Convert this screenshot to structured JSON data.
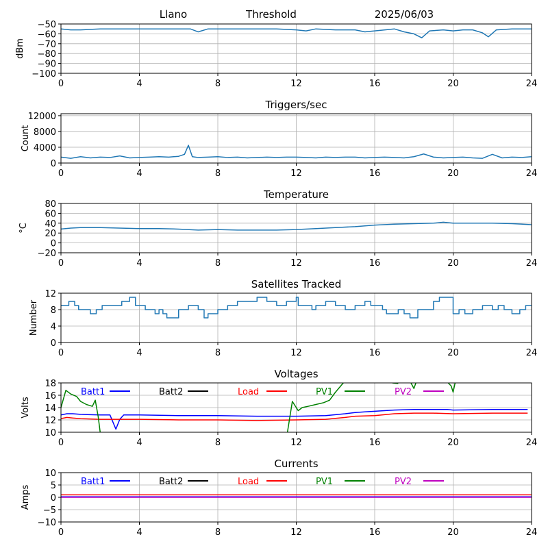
{
  "header": {
    "site": "Llano",
    "mode": "Threshold",
    "date": "2025/06/03"
  },
  "colors": {
    "series_default": "#1f77b4",
    "grid": "#b0b0b0"
  },
  "chart_data": [
    {
      "id": "signal",
      "type": "line",
      "title": "",
      "xlabel": "",
      "ylabel": "dBm",
      "xlim": [
        0,
        24
      ],
      "ylim": [
        -100,
        -50
      ],
      "xticks": [
        0,
        4,
        8,
        12,
        16,
        20,
        24
      ],
      "yticks": [
        -100,
        -90,
        -80,
        -70,
        -60,
        -50
      ],
      "grid": true,
      "series": [
        {
          "color": "#1f77b4",
          "x": [
            0,
            0.5,
            1,
            2,
            3,
            4,
            5,
            6,
            6.6,
            7,
            7.5,
            8,
            9,
            10,
            11,
            12,
            12.5,
            13,
            14,
            15,
            15.5,
            16,
            17,
            17.5,
            18,
            18.4,
            18.8,
            19.5,
            20,
            20.5,
            21,
            21.5,
            21.8,
            22.2,
            23,
            24
          ],
          "y": [
            -55,
            -56,
            -56,
            -55,
            -55,
            -55,
            -55,
            -55,
            -55,
            -58,
            -55,
            -55,
            -55,
            -55,
            -55,
            -56,
            -57,
            -55,
            -56,
            -56,
            -58,
            -57,
            -55,
            -58,
            -60,
            -64,
            -57,
            -56,
            -57,
            -56,
            -56,
            -59,
            -63,
            -56,
            -55,
            -55
          ]
        }
      ]
    },
    {
      "id": "triggers",
      "type": "line",
      "title": "Triggers/sec",
      "xlabel": "",
      "ylabel": "Count",
      "xlim": [
        0,
        24
      ],
      "ylim": [
        0,
        12500
      ],
      "xticks": [
        0,
        4,
        8,
        12,
        16,
        20,
        24
      ],
      "yticks": [
        0,
        4000,
        8000,
        12000
      ],
      "grid": true,
      "series": [
        {
          "color": "#1f77b4",
          "x": [
            0,
            0.5,
            1,
            1.5,
            2,
            2.5,
            3,
            3.5,
            4,
            4.5,
            5,
            5.5,
            6,
            6.3,
            6.5,
            6.7,
            7,
            7.5,
            8,
            8.5,
            9,
            9.5,
            10,
            10.5,
            11,
            11.5,
            12,
            12.5,
            13,
            13.5,
            14,
            14.5,
            15,
            15.5,
            16,
            16.5,
            17,
            17.5,
            18,
            18.5,
            19,
            19.5,
            20,
            20.5,
            21,
            21.5,
            22,
            22.5,
            23,
            23.5,
            24
          ],
          "y": [
            1500,
            1200,
            1600,
            1300,
            1500,
            1400,
            1800,
            1300,
            1400,
            1500,
            1600,
            1500,
            1700,
            2200,
            4500,
            1600,
            1400,
            1500,
            1600,
            1400,
            1500,
            1300,
            1400,
            1500,
            1400,
            1500,
            1500,
            1400,
            1300,
            1500,
            1400,
            1500,
            1500,
            1300,
            1400,
            1500,
            1400,
            1300,
            1600,
            2300,
            1500,
            1300,
            1400,
            1500,
            1300,
            1200,
            2200,
            1300,
            1500,
            1400,
            1600
          ]
        }
      ]
    },
    {
      "id": "temperature",
      "type": "line",
      "title": "Temperature",
      "xlabel": "",
      "ylabel": "°C",
      "xlim": [
        0,
        24
      ],
      "ylim": [
        -20,
        80
      ],
      "xticks": [
        0,
        4,
        8,
        12,
        16,
        20,
        24
      ],
      "yticks": [
        -20,
        0,
        20,
        40,
        60,
        80
      ],
      "grid": true,
      "series": [
        {
          "color": "#1f77b4",
          "x": [
            0,
            0.5,
            1,
            2,
            3,
            4,
            5,
            6,
            7,
            8,
            9,
            10,
            11,
            12,
            13,
            14,
            15,
            16,
            17,
            18,
            19,
            19.5,
            20,
            21,
            22,
            23,
            24
          ],
          "y": [
            28,
            30,
            31,
            31,
            30,
            29,
            29,
            28,
            26,
            27,
            26,
            26,
            26,
            27,
            29,
            31,
            33,
            36,
            38,
            39,
            40,
            42,
            40,
            40,
            40,
            39,
            37
          ]
        }
      ]
    },
    {
      "id": "satellites",
      "type": "line",
      "title": "Satellites Tracked",
      "xlabel": "",
      "ylabel": "Number",
      "xlim": [
        0,
        24
      ],
      "ylim": [
        0,
        12
      ],
      "xticks": [
        0,
        4,
        8,
        12,
        16,
        20,
        24
      ],
      "yticks": [
        0,
        4,
        8,
        12
      ],
      "grid": true,
      "step": true,
      "series": [
        {
          "color": "#1f77b4",
          "x": [
            0,
            0.4,
            0.7,
            0.9,
            1.5,
            1.8,
            2.1,
            3.1,
            3.5,
            3.8,
            4.3,
            4.8,
            5.0,
            5.2,
            5.4,
            6.0,
            6.5,
            7.0,
            7.3,
            7.5,
            8.0,
            8.5,
            9.0,
            10.0,
            10.5,
            11.0,
            11.5,
            12.0,
            12.1,
            12.8,
            13.0,
            13.5,
            14.0,
            14.5,
            15.0,
            15.5,
            15.8,
            16.4,
            16.6,
            17.2,
            17.5,
            17.8,
            18.2,
            19.0,
            19.3,
            20.0,
            20.3,
            20.6,
            21.0,
            21.5,
            22.0,
            22.3,
            22.6,
            23.0,
            23.4,
            23.7,
            24
          ],
          "y": [
            9,
            10,
            9,
            8,
            7,
            8,
            9,
            10,
            11,
            9,
            8,
            7,
            8,
            7,
            6,
            8,
            9,
            8,
            6,
            7,
            8,
            9,
            10,
            11,
            10,
            9,
            10,
            11,
            9,
            8,
            9,
            10,
            9,
            8,
            9,
            10,
            9,
            8,
            7,
            8,
            7,
            6,
            8,
            10,
            11,
            7,
            8,
            7,
            8,
            9,
            8,
            9,
            8,
            7,
            8,
            9,
            9
          ]
        }
      ]
    },
    {
      "id": "voltages",
      "type": "line",
      "title": "Voltages",
      "xlabel": "",
      "ylabel": "Volts",
      "xlim": [
        0,
        24
      ],
      "ylim": [
        10,
        18
      ],
      "xticks": [
        0,
        4,
        8,
        12,
        16,
        20,
        24
      ],
      "yticks": [
        10,
        12,
        14,
        16,
        18
      ],
      "grid": true,
      "legend": {
        "placement": "top",
        "entries": [
          {
            "label": "Batt1",
            "color": "#0000ff"
          },
          {
            "label": "Batt2",
            "color": "#000000"
          },
          {
            "label": "Load",
            "color": "#ff0000"
          },
          {
            "label": "PV1",
            "color": "#008000"
          },
          {
            "label": "PV2",
            "color": "#bf00bf"
          }
        ]
      },
      "series": [
        {
          "name": "Batt1",
          "color": "#0000ff",
          "x": [
            0,
            0.3,
            0.6,
            1,
            2,
            2.5,
            2.8,
            3.0,
            3.2,
            4,
            6,
            8,
            10,
            12,
            13.5,
            14.5,
            15,
            15.5,
            16,
            17,
            18,
            19,
            19.7,
            20,
            22,
            23.8
          ],
          "y": [
            12.8,
            13.0,
            13.0,
            12.9,
            12.8,
            12.8,
            10.5,
            12.1,
            12.8,
            12.8,
            12.7,
            12.7,
            12.6,
            12.6,
            12.7,
            13.0,
            13.2,
            13.3,
            13.4,
            13.6,
            13.7,
            13.7,
            13.7,
            13.6,
            13.7,
            13.7
          ]
        },
        {
          "name": "Load",
          "color": "#ff0000",
          "x": [
            0,
            0.3,
            0.6,
            1,
            2,
            4,
            6,
            8,
            10,
            12,
            13.5,
            14.5,
            15,
            16,
            17,
            18,
            19,
            20,
            22,
            23.8
          ],
          "y": [
            12.2,
            12.4,
            12.3,
            12.2,
            12.1,
            12.1,
            12.0,
            12.0,
            11.9,
            12.0,
            12.1,
            12.4,
            12.6,
            12.7,
            13.0,
            13.1,
            13.1,
            13.0,
            13.1,
            13.1
          ]
        },
        {
          "name": "PV1",
          "color": "#008000",
          "x": [
            0,
            0.25,
            0.5,
            0.8,
            1.0,
            1.3,
            1.6,
            1.75,
            1.9,
            2.0
          ],
          "y": [
            14.0,
            16.8,
            16.2,
            15.8,
            15.0,
            14.5,
            14.2,
            15.2,
            12.5,
            10.0
          ]
        },
        {
          "name": "PV1",
          "color": "#008000",
          "x": [
            11.55,
            11.8,
            12.1,
            12.3,
            12.6,
            13.0,
            13.4,
            13.7,
            14.0,
            14.4
          ],
          "y": [
            10.0,
            15.0,
            13.5,
            14.0,
            14.2,
            14.5,
            14.8,
            15.2,
            16.5,
            18.0
          ]
        },
        {
          "name": "PV1",
          "color": "#008000",
          "x": [
            16.9,
            17.2
          ],
          "y": [
            18.0,
            17.9
          ]
        },
        {
          "name": "PV1",
          "color": "#008000",
          "x": [
            17.85,
            18.0,
            18.1
          ],
          "y": [
            18.0,
            17.1,
            18.0
          ]
        },
        {
          "name": "PV1",
          "color": "#008000",
          "x": [
            19.75,
            19.9,
            20.0,
            20.1
          ],
          "y": [
            18.0,
            17.5,
            16.5,
            18.0
          ]
        }
      ]
    },
    {
      "id": "currents",
      "type": "line",
      "title": "Currents",
      "xlabel": "",
      "ylabel": "Amps",
      "xlim": [
        0,
        24
      ],
      "ylim": [
        -10,
        10
      ],
      "xticks": [
        0,
        4,
        8,
        12,
        16,
        20,
        24
      ],
      "yticks": [
        -10,
        -5,
        0,
        5,
        10
      ],
      "grid": true,
      "legend": {
        "placement": "top",
        "entries": [
          {
            "label": "Batt1",
            "color": "#0000ff"
          },
          {
            "label": "Batt2",
            "color": "#000000"
          },
          {
            "label": "Load",
            "color": "#ff0000"
          },
          {
            "label": "PV1",
            "color": "#008000"
          },
          {
            "label": "PV2",
            "color": "#bf00bf"
          }
        ]
      },
      "series": [
        {
          "name": "Load",
          "color": "#ff0000",
          "x": [
            0,
            24
          ],
          "y": [
            1.0,
            1.0
          ]
        },
        {
          "name": "Batt1",
          "color": "#0000ff",
          "x": [
            0,
            24
          ],
          "y": [
            0.2,
            0.2
          ]
        },
        {
          "name": "PV2",
          "color": "#bf00bf",
          "x": [
            0,
            24
          ],
          "y": [
            0.0,
            0.0
          ]
        }
      ]
    }
  ]
}
